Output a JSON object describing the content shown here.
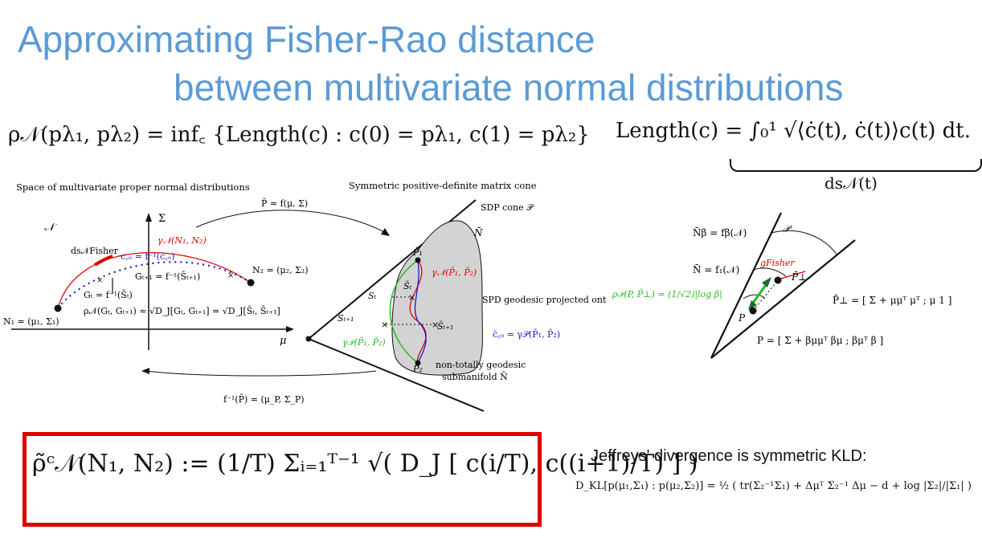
{
  "title": {
    "line1": "Approximating Fisher-Rao distance",
    "line2": "between multivariate normal distributions"
  },
  "equations": {
    "rao_definition": "ρ𝒩(pλ₁, pλ₂) = inf꜀ {Length(c) : c(0) = pλ₁, c(1) = pλ₂}",
    "length_lhs": "Length(c) = ",
    "length_integrand": "∫₀¹ √⟨ċ(t), ċ(t)⟩c(t) dt.",
    "length_underbrace": "ds𝒩(t)",
    "estimator": "ρ̃ᶜ𝒩(N₁, N₂) := (1/T) Σᵢ₌₁ᵀ⁻¹ √( D_J [ c(i/T), c((i+1)/T) ] )",
    "kld": "D_KL[p(μ₁,Σ₁) : p(μ₂,Σ₂)] = ½ ( tr(Σ₂⁻¹Σ₁) + Δμᵀ Σ₂⁻¹ Δμ − d + log |Σ₂|/|Σ₁| )"
  },
  "jeffreys_caption": "Jeffreys' divergence is symmetric KLD:",
  "left_figure": {
    "heading": "Space of multivariate proper normal distributions",
    "manifold": "𝒩",
    "axis_sigma": "Σ",
    "axis_mu": "μ",
    "ds_fisher": "ds𝒩Fisher",
    "gamma_n": "γ𝒩(N₁, N₂)",
    "c_co": "c꜀ₒ = f⁻¹(c̄꜀ₒ)",
    "g_t1": "Gₜ₊₁ = f⁻¹(S̄ₜ₊₁)",
    "g_t": "Gₜ = f⁻¹(S̄ₜ)",
    "n2": "N₂ = (μ₂, Σ₂)",
    "n1": "N₁ = (μ₁, Σ₁)",
    "rho_approx": "ρ𝒩(Gₜ, Gₜ₊₁) ≈ √D_J[Gₜ, Gₜ₊₁] = √D_J[S̄ₜ, S̄ₜ₊₁]"
  },
  "arrows": {
    "forward": "P̄ = f(μ, Σ)",
    "inverse": "f⁻¹(P̄) = (μ_P, Σ_P)"
  },
  "middle_figure": {
    "heading": "Symmetric positive-definite matrix cone",
    "sdp_cone": "SDP cone 𝒫",
    "n_bar": "N̄",
    "p1": "P̄₁",
    "p2": "P̄₂",
    "gamma_n_bar": "γ𝒩(P̄₁, P̄₂)",
    "s_t": "Sₜ",
    "s_t_bar": "S̄ₜ",
    "s_t1": "Sₜ₊₁",
    "s_t1_bar": "S̄ₜ₊₁",
    "gamma_p": "γ𝒫(P̄₁, P̄₂)",
    "spd_projected": "SPD geodesic projected ont",
    "c_co_bar": "c̄꜀ₒ = γ𝒫(P̄₁, P̄₂)",
    "non_geodesic_1": "non-totally geodesic",
    "non_geodesic_2": "submanifold N̄"
  },
  "right_figure": {
    "n_beta": "N̄β = fβ(𝒩)",
    "p_label": "𝒫",
    "n_bar_f1": "N̄ = f₁(𝒩)",
    "g_fisher": "gFisher",
    "p_perp": "P̄⊥",
    "rho_p": "ρ𝒫(P, P̄⊥) = (1/√2)|log β|",
    "p": "P",
    "p_perp_matrix": "P̄⊥ = [ Σ + μμᵀ  μᵀ ; μ  1 ]",
    "p_matrix": "P = [ Σ + βμμᵀ  βμ ; βμᵀ  β ]"
  },
  "colors": {
    "title": "#5b9bd5",
    "geodesic_red": "#e00000",
    "dotted_blue": "#1a1ac8",
    "green": "#22bb22",
    "cone_fill": "#d3d3d3",
    "box_border": "#e00000"
  }
}
